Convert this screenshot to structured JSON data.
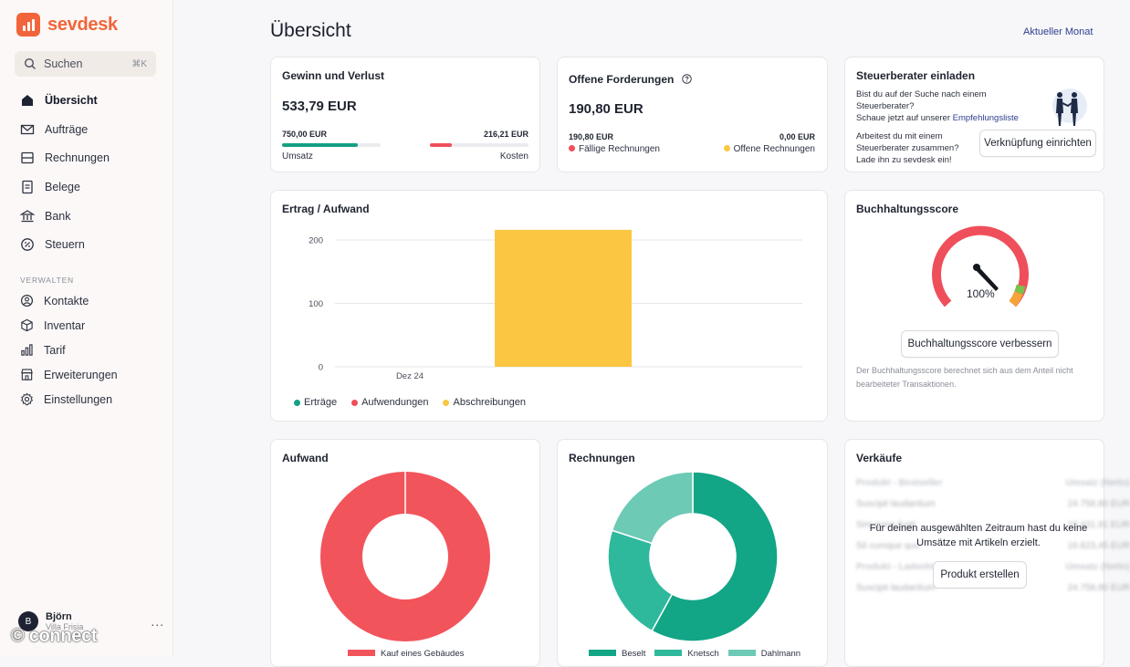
{
  "app": {
    "brand": "sevdesk",
    "accent": "#f2653a"
  },
  "search": {
    "label": "Suchen",
    "shortcut": "⌘K"
  },
  "nav": {
    "primary": [
      {
        "label": "Übersicht",
        "icon": "home-icon",
        "active": true
      },
      {
        "label": "Aufträge",
        "icon": "mail-icon"
      },
      {
        "label": "Rechnungen",
        "icon": "invoice-icon"
      },
      {
        "label": "Belege",
        "icon": "receipt-icon"
      },
      {
        "label": "Bank",
        "icon": "bank-icon"
      },
      {
        "label": "Steuern",
        "icon": "tax-icon"
      }
    ],
    "section_heading": "VERWALTEN",
    "secondary": [
      {
        "label": "Kontakte",
        "icon": "contacts-icon"
      },
      {
        "label": "Inventar",
        "icon": "box-icon"
      },
      {
        "label": "Tarif",
        "icon": "chart-bars-icon"
      },
      {
        "label": "Erweiterungen",
        "icon": "store-icon"
      },
      {
        "label": "Einstellungen",
        "icon": "gear-icon"
      }
    ]
  },
  "user": {
    "initial": "B",
    "name": "Björn",
    "company": "Villa Frisia",
    "more": "..."
  },
  "watermark": "© connect",
  "page": {
    "title": "Übersicht",
    "period": "Aktueller Monat"
  },
  "profit": {
    "title": "Gewinn und Verlust",
    "value": "533,79 EUR",
    "revenue_value": "750,00 EUR",
    "revenue_label": "Umsatz",
    "revenue_fraction": 0.77,
    "cost_value": "216,21 EUR",
    "cost_label": "Kosten",
    "cost_fraction": 0.22
  },
  "receivables": {
    "title": "Offene Forderungen",
    "value": "190,80 EUR",
    "due_value": "190,80 EUR",
    "due_label": "Fällige Rechnungen",
    "open_value": "0,00 EUR",
    "open_label": "Offene Rechnungen"
  },
  "advisor": {
    "title": "Steuerberater einladen",
    "text1": "Bist du auf der Suche nach einem Steuerberater?",
    "text2_prefix": "Schaue jetzt auf unserer ",
    "text2_link": "Empfehlungsliste",
    "text3": "Arbeitest du mit einem Steuerberater zusammen? Lade ihn zu sevdesk ein!",
    "button": "Verknüpfung einrichten"
  },
  "score": {
    "title": "Buchhaltungsscore",
    "value_label": "100%",
    "value": 100,
    "button": "Buchhaltungsscore verbessern",
    "note": "Der Buchhaltungsscore berechnet sich aus dem Anteil nicht bearbeiteter Transaktionen."
  },
  "chart_data": [
    {
      "type": "bar",
      "title": "Ertrag / Aufwand",
      "categories": [
        "Dez 24"
      ],
      "series": [
        {
          "name": "Erträge",
          "color": "#14a085",
          "values": [
            0
          ]
        },
        {
          "name": "Aufwendungen",
          "color": "#ef4f5a",
          "values": [
            0
          ]
        },
        {
          "name": "Abschreibungen",
          "color": "#fbc742",
          "values": [
            216
          ]
        }
      ],
      "yticks": [
        "200",
        "100",
        "0"
      ],
      "ylim": [
        0,
        200
      ]
    },
    {
      "type": "pie",
      "title": "Aufwand",
      "labels": [
        "Kauf eines Gebäudes"
      ],
      "values": [
        100
      ],
      "colors": [
        "#f2545c"
      ]
    },
    {
      "type": "pie",
      "title": "Rechnungen",
      "labels": [
        "Beselt",
        "Knetsch",
        "Dahlmann"
      ],
      "values": [
        58,
        22,
        20
      ],
      "colors": [
        "#12a586",
        "#2fb99c",
        "#6ccab5"
      ]
    }
  ],
  "sales": {
    "title": "Verkäufe",
    "header1": [
      "Produkt - Bestseller",
      "Umsatz (Netto)"
    ],
    "rows1": [
      [
        "Suscipit laudantium",
        "24.758,80 EUR"
      ],
      [
        "Sint porro fugit",
        "19.431,91 EUR"
      ],
      [
        "Sit cumque quo",
        "16.823,45 EUR"
      ]
    ],
    "header2": [
      "Produkt - Ladenhüter",
      "Umsatz (Netto)"
    ],
    "rows2": [
      [
        "Suscipit laudantium",
        "24.758,80 EUR"
      ]
    ],
    "empty_message": "Für deinen ausgewählten Zeitraum hast du keine Umsätze mit Artikeln erzielt.",
    "button": "Produkt erstellen"
  }
}
